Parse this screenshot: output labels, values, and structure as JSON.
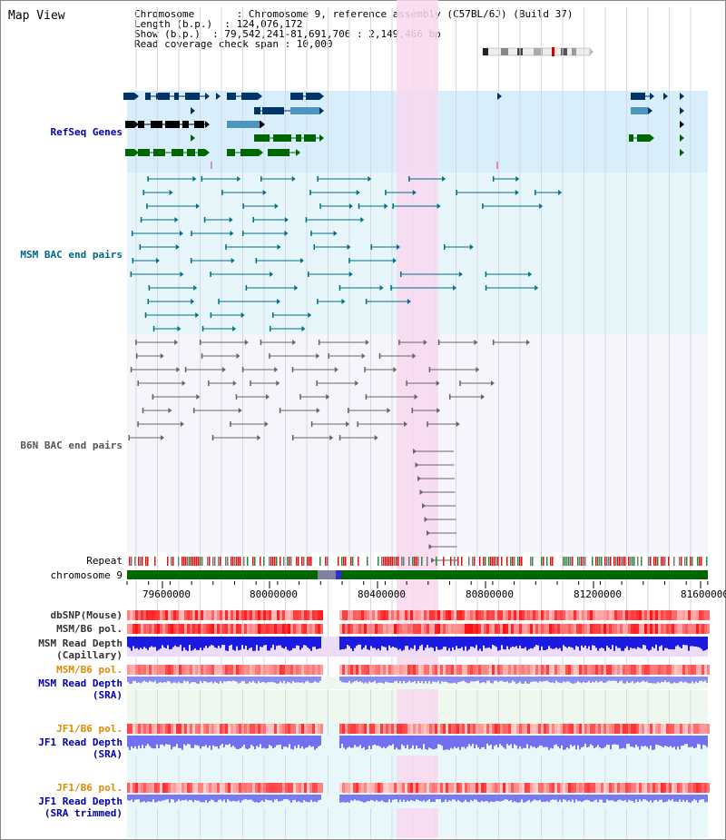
{
  "header": {
    "title": "Map View",
    "info_lines": [
      "Chromosome       : Chromosome 9, reference assembly (C57BL/6J) (Build 37)",
      "Length (b.p.)  : 124,076,172",
      "Show (b.p.)  : 79,542,241-81,691,706 : 2,149,466 bp",
      "Read coverage check span : 10,000"
    ]
  },
  "tracks": {
    "refseq": "RefSeq Genes",
    "msm_bac": "MSM BAC end pairs",
    "b6n_bac": "B6N BAC end pairs",
    "repeat": "Repeat",
    "chromosome": "chromosome 9",
    "dbsnp": "dbSNP(Mouse)",
    "msm_b6_pol": "MSM/B6 pol.",
    "msm_read_depth_cap": "MSM Read Depth\n(Capillary)",
    "msm_b6_pol_2": "MSM/B6 pol.",
    "msm_read_depth_sra": "MSM Read Depth\n(SRA)",
    "jf1_b6_pol": "JF1/B6 pol.",
    "jf1_read_depth_sra": "JF1 Read Depth\n(SRA)",
    "jf1_b6_pol_2": "JF1/B6 pol.",
    "jf1_read_depth_trim": "JF1 Read Depth\n(SRA trimmed)"
  },
  "axis": {
    "ticks": [
      "79600000",
      "80000000",
      "80400000",
      "80800000",
      "81200000",
      "81600000"
    ]
  },
  "colors": {
    "highlight": "#f8d8f0",
    "refseq_bg": "#d8eefa",
    "msm_bg": "#e6f6fa",
    "b6n_bg": "#f4f6fb",
    "chrom_green": "#006600",
    "gene_dark": "#003366",
    "gene_light": "#4a96c0",
    "gene_green": "#006600"
  }
}
